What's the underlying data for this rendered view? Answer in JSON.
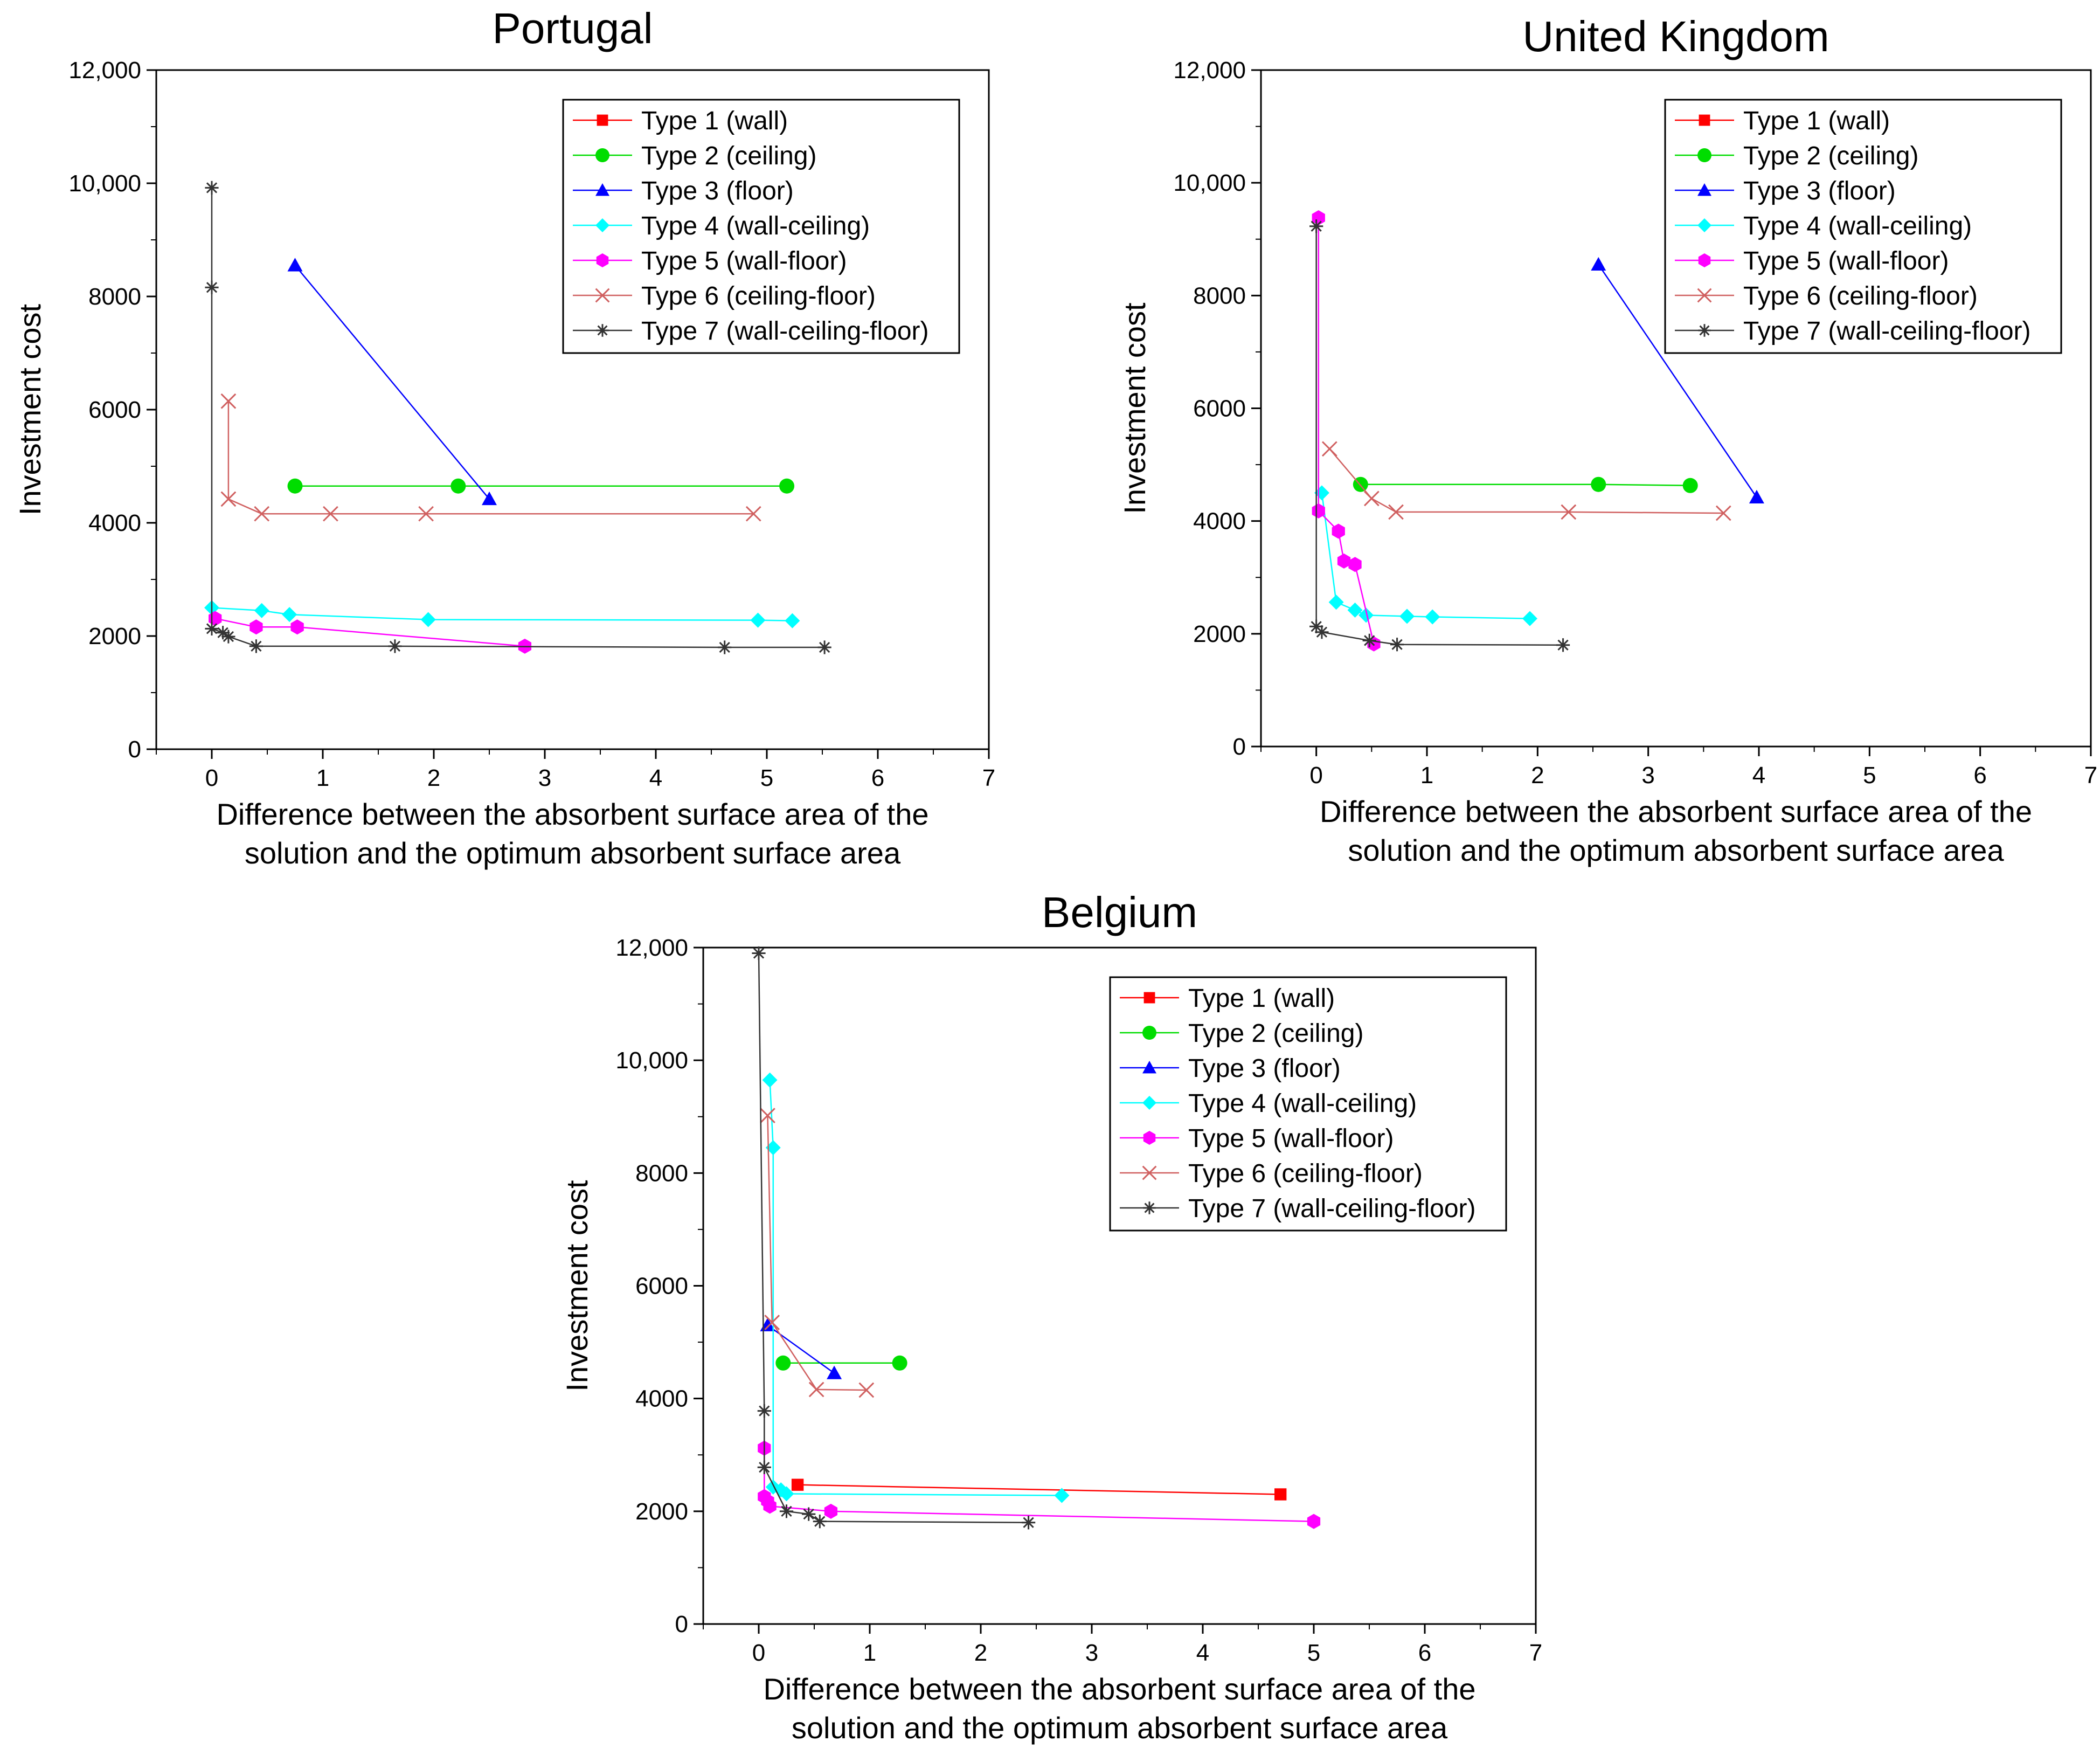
{
  "chart_data": [
    {
      "type": "line",
      "title": "Portugal",
      "xlabel": "Difference between the absorbent surface area of the solution and the optimum absorbent surface area",
      "xlabel_lines": [
        "Difference between the absorbent surface area of the",
        "solution and the optimum absorbent surface area"
      ],
      "ylabel": "Investment cost",
      "xlim": [
        -0.5,
        7
      ],
      "ylim": [
        0,
        12000
      ],
      "xticks": [
        0,
        1,
        2,
        3,
        4,
        5,
        6,
        7
      ],
      "yticks": [
        0,
        2000,
        4000,
        6000,
        8000,
        10000,
        12000
      ],
      "ytick_labels": [
        "0",
        "2000",
        "4000",
        "6000",
        "8000",
        "10,000",
        "12,000"
      ],
      "legend_position": "top-right",
      "series": [
        {
          "name": "Type 1 (wall)",
          "color": "#ff0000",
          "marker": "square",
          "x": [],
          "y": []
        },
        {
          "name": "Type 2 (ceiling)",
          "color": "#00dd00",
          "marker": "circle",
          "x": [
            0.75,
            2.22,
            5.18
          ],
          "y": [
            4650,
            4650,
            4650
          ]
        },
        {
          "name": "Type 3 (floor)",
          "color": "#0000ff",
          "marker": "triangle",
          "x": [
            0.75,
            2.5
          ],
          "y": [
            8550,
            4420
          ]
        },
        {
          "name": "Type 4 (wall-ceiling)",
          "color": "#00ffff",
          "marker": "diamond",
          "x": [
            0.0,
            0.45,
            0.7,
            1.95,
            4.92,
            5.23
          ],
          "y": [
            2500,
            2450,
            2380,
            2290,
            2280,
            2270
          ]
        },
        {
          "name": "Type 5 (wall-floor)",
          "color": "#ff00ff",
          "marker": "hexagon",
          "x": [
            0.03,
            0.4,
            0.77,
            2.82
          ],
          "y": [
            2310,
            2160,
            2160,
            1820
          ]
        },
        {
          "name": "Type 6 (ceiling-floor)",
          "color": "#d06060",
          "marker": "x",
          "x": [
            0.15,
            0.15,
            0.45,
            1.07,
            1.93,
            4.88
          ],
          "y": [
            6150,
            4420,
            4160,
            4160,
            4160,
            4160
          ]
        },
        {
          "name": "Type 7 (wall-ceiling-floor)",
          "color": "#333333",
          "marker": "star",
          "x": [
            0.0,
            0.0,
            0.0,
            0.1,
            0.15,
            0.4,
            1.65,
            4.62,
            5.52
          ],
          "y": [
            9920,
            8160,
            2130,
            2060,
            1990,
            1820,
            1820,
            1800,
            1800
          ]
        }
      ]
    },
    {
      "type": "line",
      "title": "United Kingdom",
      "xlabel": "Difference between the absorbent surface area of the solution and the optimum absorbent surface area",
      "xlabel_lines": [
        "Difference between the absorbent surface area of the",
        "solution and the optimum absorbent surface area"
      ],
      "ylabel": "Investment cost",
      "xlim": [
        -0.5,
        7
      ],
      "ylim": [
        0,
        12000
      ],
      "xticks": [
        0,
        1,
        2,
        3,
        4,
        5,
        6,
        7
      ],
      "yticks": [
        0,
        2000,
        4000,
        6000,
        8000,
        10000,
        12000
      ],
      "ytick_labels": [
        "0",
        "2000",
        "4000",
        "6000",
        "8000",
        "10,000",
        "12,000"
      ],
      "legend_position": "top-right",
      "series": [
        {
          "name": "Type 1 (wall)",
          "color": "#ff0000",
          "marker": "square",
          "x": [],
          "y": []
        },
        {
          "name": "Type 2 (ceiling)",
          "color": "#00dd00",
          "marker": "circle",
          "x": [
            0.4,
            2.55,
            3.38
          ],
          "y": [
            4650,
            4650,
            4630
          ]
        },
        {
          "name": "Type 3 (floor)",
          "color": "#0000ff",
          "marker": "triangle",
          "x": [
            2.55,
            3.98
          ],
          "y": [
            8550,
            4420
          ]
        },
        {
          "name": "Type 4 (wall-ceiling)",
          "color": "#00ffff",
          "marker": "diamond",
          "x": [
            0.05,
            0.18,
            0.35,
            0.45,
            0.82,
            1.05,
            1.93
          ],
          "y": [
            4500,
            2560,
            2420,
            2330,
            2310,
            2300,
            2270
          ]
        },
        {
          "name": "Type 5 (wall-floor)",
          "color": "#ff00ff",
          "marker": "hexagon",
          "x": [
            0.02,
            0.02,
            0.2,
            0.25,
            0.35,
            0.52
          ],
          "y": [
            9380,
            4180,
            3820,
            3290,
            3230,
            1820
          ]
        },
        {
          "name": "Type 6 (ceiling-floor)",
          "color": "#d06060",
          "marker": "x",
          "x": [
            0.12,
            0.5,
            0.72,
            2.28,
            3.68
          ],
          "y": [
            5280,
            4400,
            4160,
            4160,
            4140
          ]
        },
        {
          "name": "Type 7 (wall-ceiling-floor)",
          "color": "#333333",
          "marker": "star",
          "x": [
            0.0,
            0.0,
            0.05,
            0.48,
            0.73,
            2.23
          ],
          "y": [
            9230,
            2130,
            2030,
            1880,
            1810,
            1800
          ]
        }
      ]
    },
    {
      "type": "line",
      "title": "Belgium",
      "xlabel": "Difference between the absorbent surface area of the solution and the optimum absorbent surface area",
      "xlabel_lines": [
        "Difference between the absorbent surface area of the",
        "solution and the optimum absorbent surface area"
      ],
      "ylabel": "Investment cost",
      "xlim": [
        -0.5,
        7
      ],
      "ylim": [
        0,
        12000
      ],
      "xticks": [
        0,
        1,
        2,
        3,
        4,
        5,
        6,
        7
      ],
      "yticks": [
        0,
        2000,
        4000,
        6000,
        8000,
        10000,
        12000
      ],
      "ytick_labels": [
        "0",
        "2000",
        "4000",
        "6000",
        "8000",
        "10,000",
        "12,000"
      ],
      "legend_position": "top-right",
      "series": [
        {
          "name": "Type 1 (wall)",
          "color": "#ff0000",
          "marker": "square",
          "x": [
            0.35,
            4.7
          ],
          "y": [
            2470,
            2300
          ]
        },
        {
          "name": "Type 2 (ceiling)",
          "color": "#00dd00",
          "marker": "circle",
          "x": [
            0.22,
            1.27
          ],
          "y": [
            4630,
            4630
          ]
        },
        {
          "name": "Type 3 (floor)",
          "color": "#0000ff",
          "marker": "triangle",
          "x": [
            0.08,
            0.68
          ],
          "y": [
            5300,
            4450
          ]
        },
        {
          "name": "Type 4 (wall-ceiling)",
          "color": "#00ffff",
          "marker": "diamond",
          "x": [
            0.1,
            0.13,
            0.13,
            0.2,
            0.25,
            2.73
          ],
          "y": [
            9650,
            8450,
            2430,
            2380,
            2310,
            2280
          ]
        },
        {
          "name": "Type 5 (wall-floor)",
          "color": "#ff00ff",
          "marker": "hexagon",
          "x": [
            0.05,
            0.05,
            0.08,
            0.1,
            0.65,
            5.0
          ],
          "y": [
            3120,
            2260,
            2180,
            2090,
            2000,
            1820
          ]
        },
        {
          "name": "Type 6 (ceiling-floor)",
          "color": "#d06060",
          "marker": "x",
          "x": [
            0.08,
            0.12,
            0.52,
            0.97
          ],
          "y": [
            9020,
            5350,
            4160,
            4150
          ]
        },
        {
          "name": "Type 7 (wall-ceiling-floor)",
          "color": "#333333",
          "marker": "star",
          "x": [
            0.0,
            0.05,
            0.05,
            0.25,
            0.45,
            0.55,
            2.43
          ],
          "y": [
            11900,
            3780,
            2780,
            2000,
            1950,
            1820,
            1800
          ]
        }
      ]
    }
  ]
}
